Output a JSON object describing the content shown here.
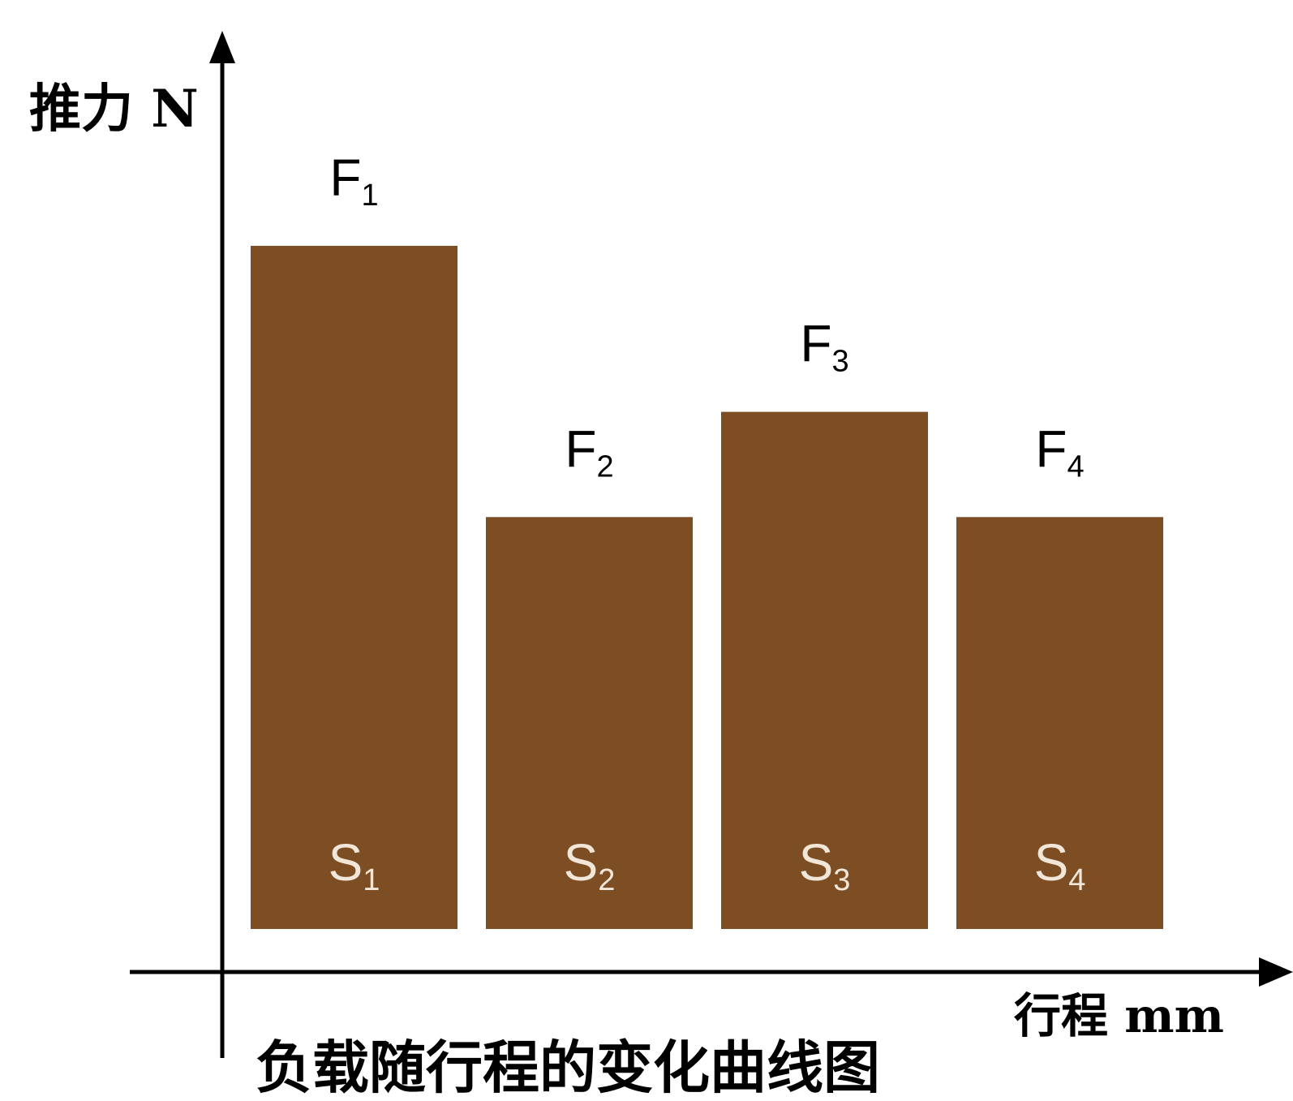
{
  "chart_data": {
    "type": "bar",
    "title": "负载随行程的变化曲线图",
    "ylabel": "推力 N",
    "xlabel": "行程 mm",
    "bar_color": "#7d4e24",
    "top_label_color": "#000000",
    "inner_label_color": "#f2e6d8",
    "axis_color": "#000000",
    "grid": false,
    "legend": "none",
    "ylim": [
      0,
      100
    ],
    "bars": [
      {
        "value": 100,
        "top_label": {
          "main": "F",
          "sub": "1"
        },
        "inner_label": {
          "main": "S",
          "sub": "1"
        }
      },
      {
        "value": 60.3,
        "top_label": {
          "main": "F",
          "sub": "2"
        },
        "inner_label": {
          "main": "S",
          "sub": "2"
        }
      },
      {
        "value": 75.7,
        "top_label": {
          "main": "F",
          "sub": "3"
        },
        "inner_label": {
          "main": "S",
          "sub": "3"
        }
      },
      {
        "value": 60.3,
        "top_label": {
          "main": "F",
          "sub": "4"
        },
        "inner_label": {
          "main": "S",
          "sub": "4"
        }
      }
    ]
  }
}
